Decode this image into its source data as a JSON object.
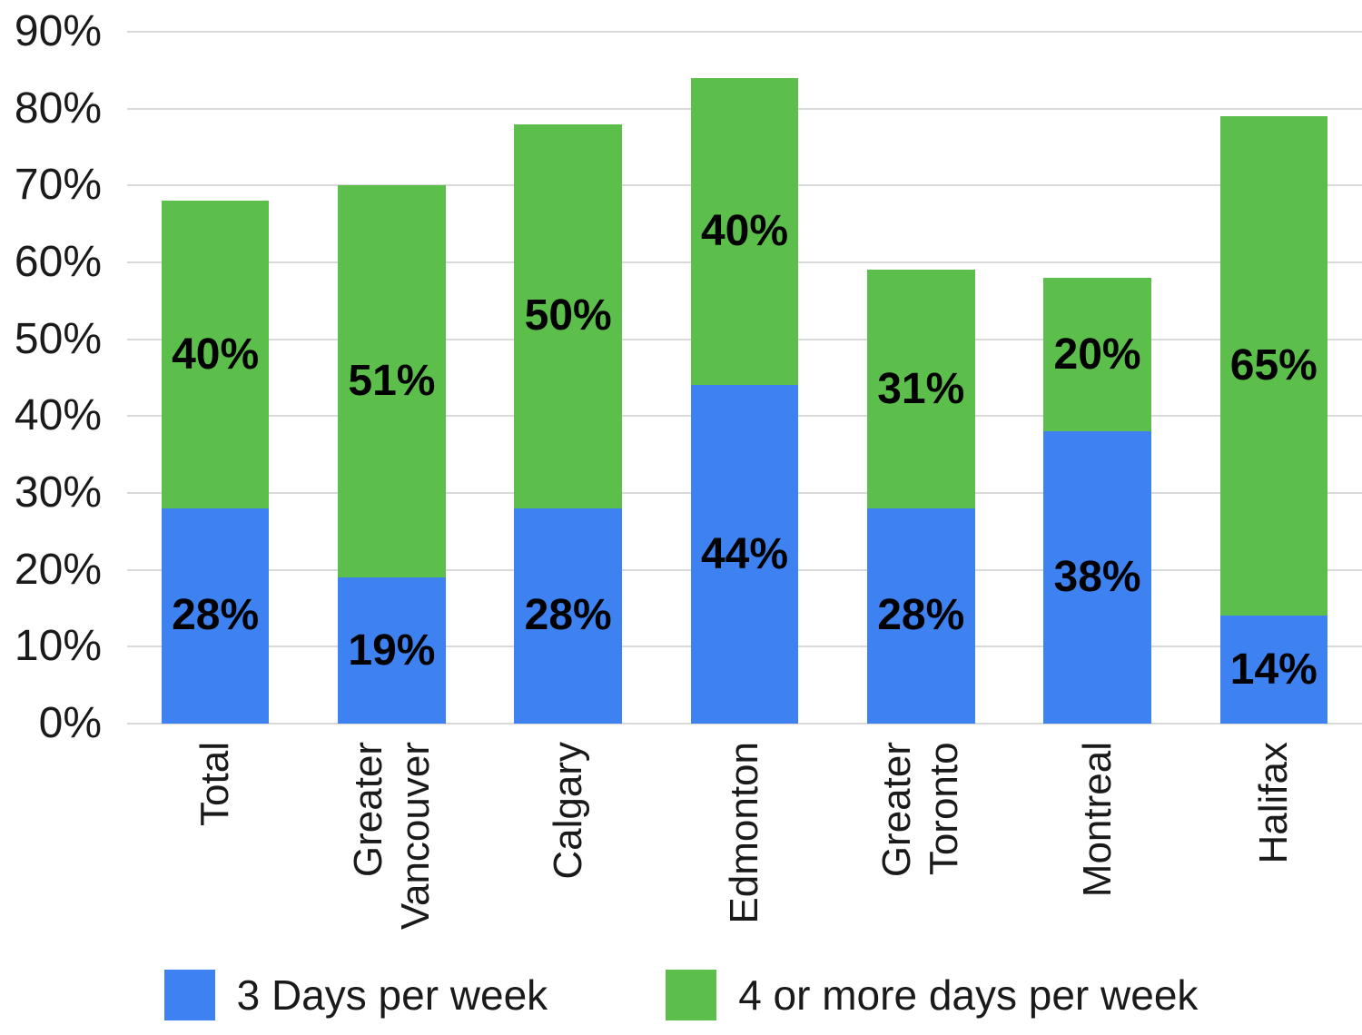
{
  "chart_data": {
    "type": "bar",
    "stacked": true,
    "title": "",
    "xlabel": "",
    "ylabel": "",
    "categories": [
      "Total",
      "Greater\nVancouver",
      "Calgary",
      "Edmonton",
      "Greater\nToronto",
      "Montreal",
      "Halifax"
    ],
    "series": [
      {
        "name": "3 Days per week",
        "color": "#3e82f2",
        "values": [
          28,
          19,
          28,
          44,
          28,
          38,
          14
        ]
      },
      {
        "name": "4 or more days per week",
        "color": "#5cbf4b",
        "values": [
          40,
          51,
          50,
          40,
          31,
          20,
          65
        ]
      }
    ],
    "value_label_format": "{v}%",
    "ylim": [
      0,
      90
    ],
    "ytick_step": 10,
    "yticks": [
      "0%",
      "10%",
      "20%",
      "30%",
      "40%",
      "50%",
      "60%",
      "70%",
      "80%",
      "90%"
    ],
    "grid": true,
    "gridline_color": "#d9d9d9",
    "legend_position": "bottom",
    "label_text_color": "#1a1a1a",
    "value_text_color": "#000000"
  }
}
